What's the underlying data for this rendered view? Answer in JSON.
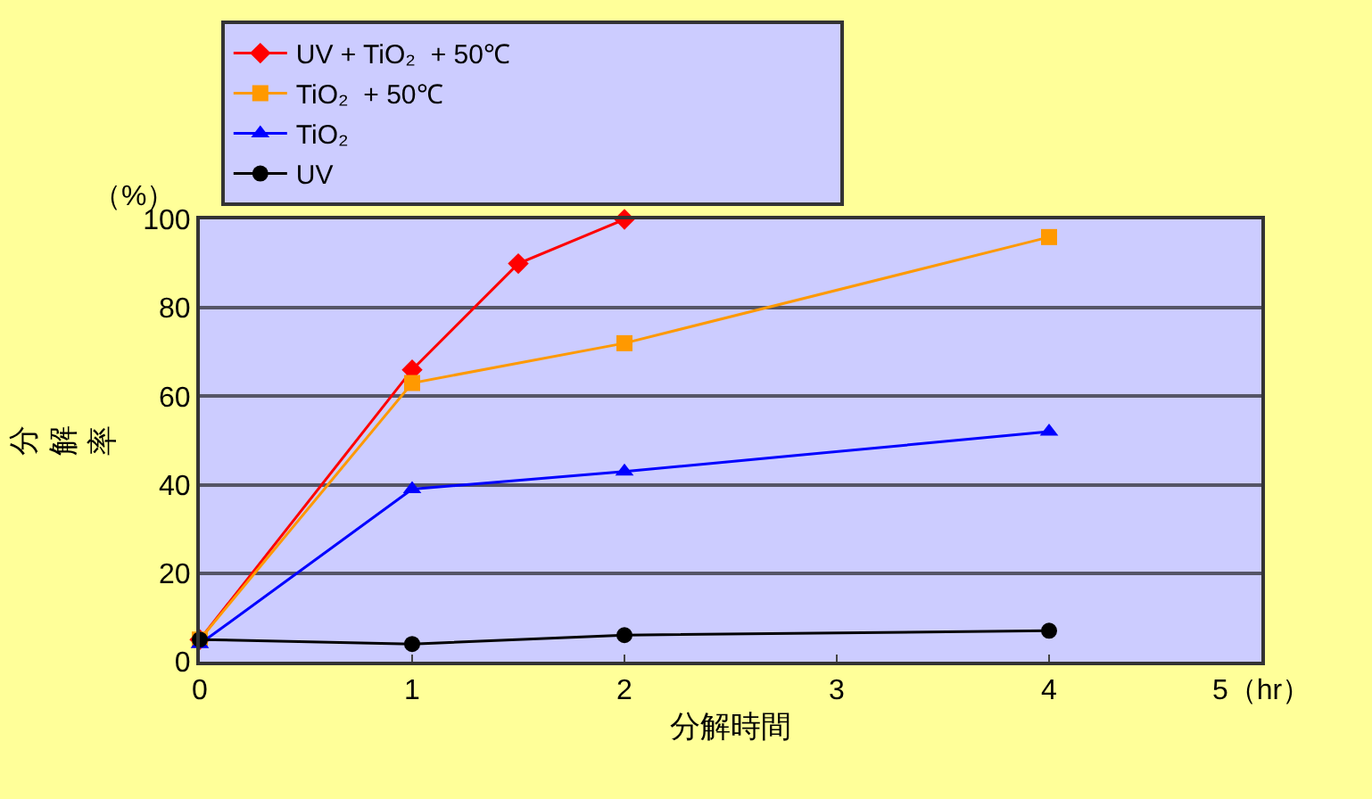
{
  "chart_data": {
    "type": "line",
    "x": [
      0,
      1,
      2,
      4
    ],
    "series": [
      {
        "name": "UV + TiO₂  + 50℃",
        "color": "#ff0000",
        "marker": "diamond",
        "x": [
          0,
          1,
          1.5,
          2
        ],
        "values": [
          5,
          66,
          90,
          100
        ]
      },
      {
        "name": "TiO₂  + 50℃",
        "color": "#ff9900",
        "marker": "square",
        "values": [
          5,
          63,
          72,
          96
        ]
      },
      {
        "name": "TiO₂",
        "color": "#0000ff",
        "marker": "triangle",
        "values": [
          4,
          39,
          43,
          52
        ]
      },
      {
        "name": "UV",
        "color": "#000000",
        "marker": "circle",
        "values": [
          5,
          4,
          6,
          7
        ]
      }
    ],
    "xlabel": "分解時間",
    "ylabel": "分解率",
    "annotations": [
      "（%）"
    ],
    "xlim": [
      0,
      5
    ],
    "xticks": [
      0,
      1,
      2,
      3,
      4,
      {
        "value": 5,
        "label": "5（hr）"
      }
    ],
    "ylim": [
      0,
      100
    ],
    "yticks": [
      0,
      20,
      40,
      60,
      80,
      100
    ],
    "grid": "y",
    "legend": "top",
    "line_style": "solid"
  }
}
